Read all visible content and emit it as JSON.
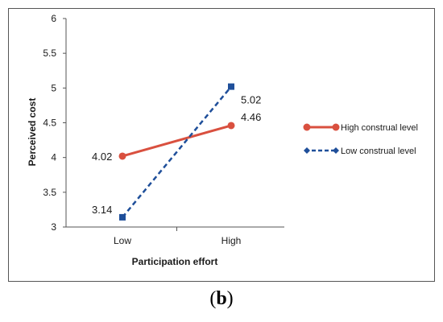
{
  "chart_data": {
    "type": "line",
    "categories": [
      "Low",
      "High"
    ],
    "xlabel": "Participation  effort",
    "ylabel": "Perceived cost",
    "ylim": [
      3,
      6
    ],
    "yticks": [
      "3",
      "3.5",
      "4",
      "4.5",
      "5",
      "5.5",
      "6"
    ],
    "grid": false,
    "legend_position": "right",
    "series": [
      {
        "name": "High construal level",
        "values": [
          4.02,
          4.46
        ],
        "labels": [
          "4.02",
          "4.46"
        ],
        "color": "#d9503f",
        "style": "solid",
        "marker": "circle"
      },
      {
        "name": "Low construal level",
        "values": [
          3.14,
          5.02
        ],
        "labels": [
          "3.14",
          "5.02"
        ],
        "color": "#1f4f9a",
        "style": "dashed",
        "marker": "square"
      }
    ]
  },
  "caption": {
    "prefix": "(",
    "letter": "b",
    "suffix": ")"
  }
}
